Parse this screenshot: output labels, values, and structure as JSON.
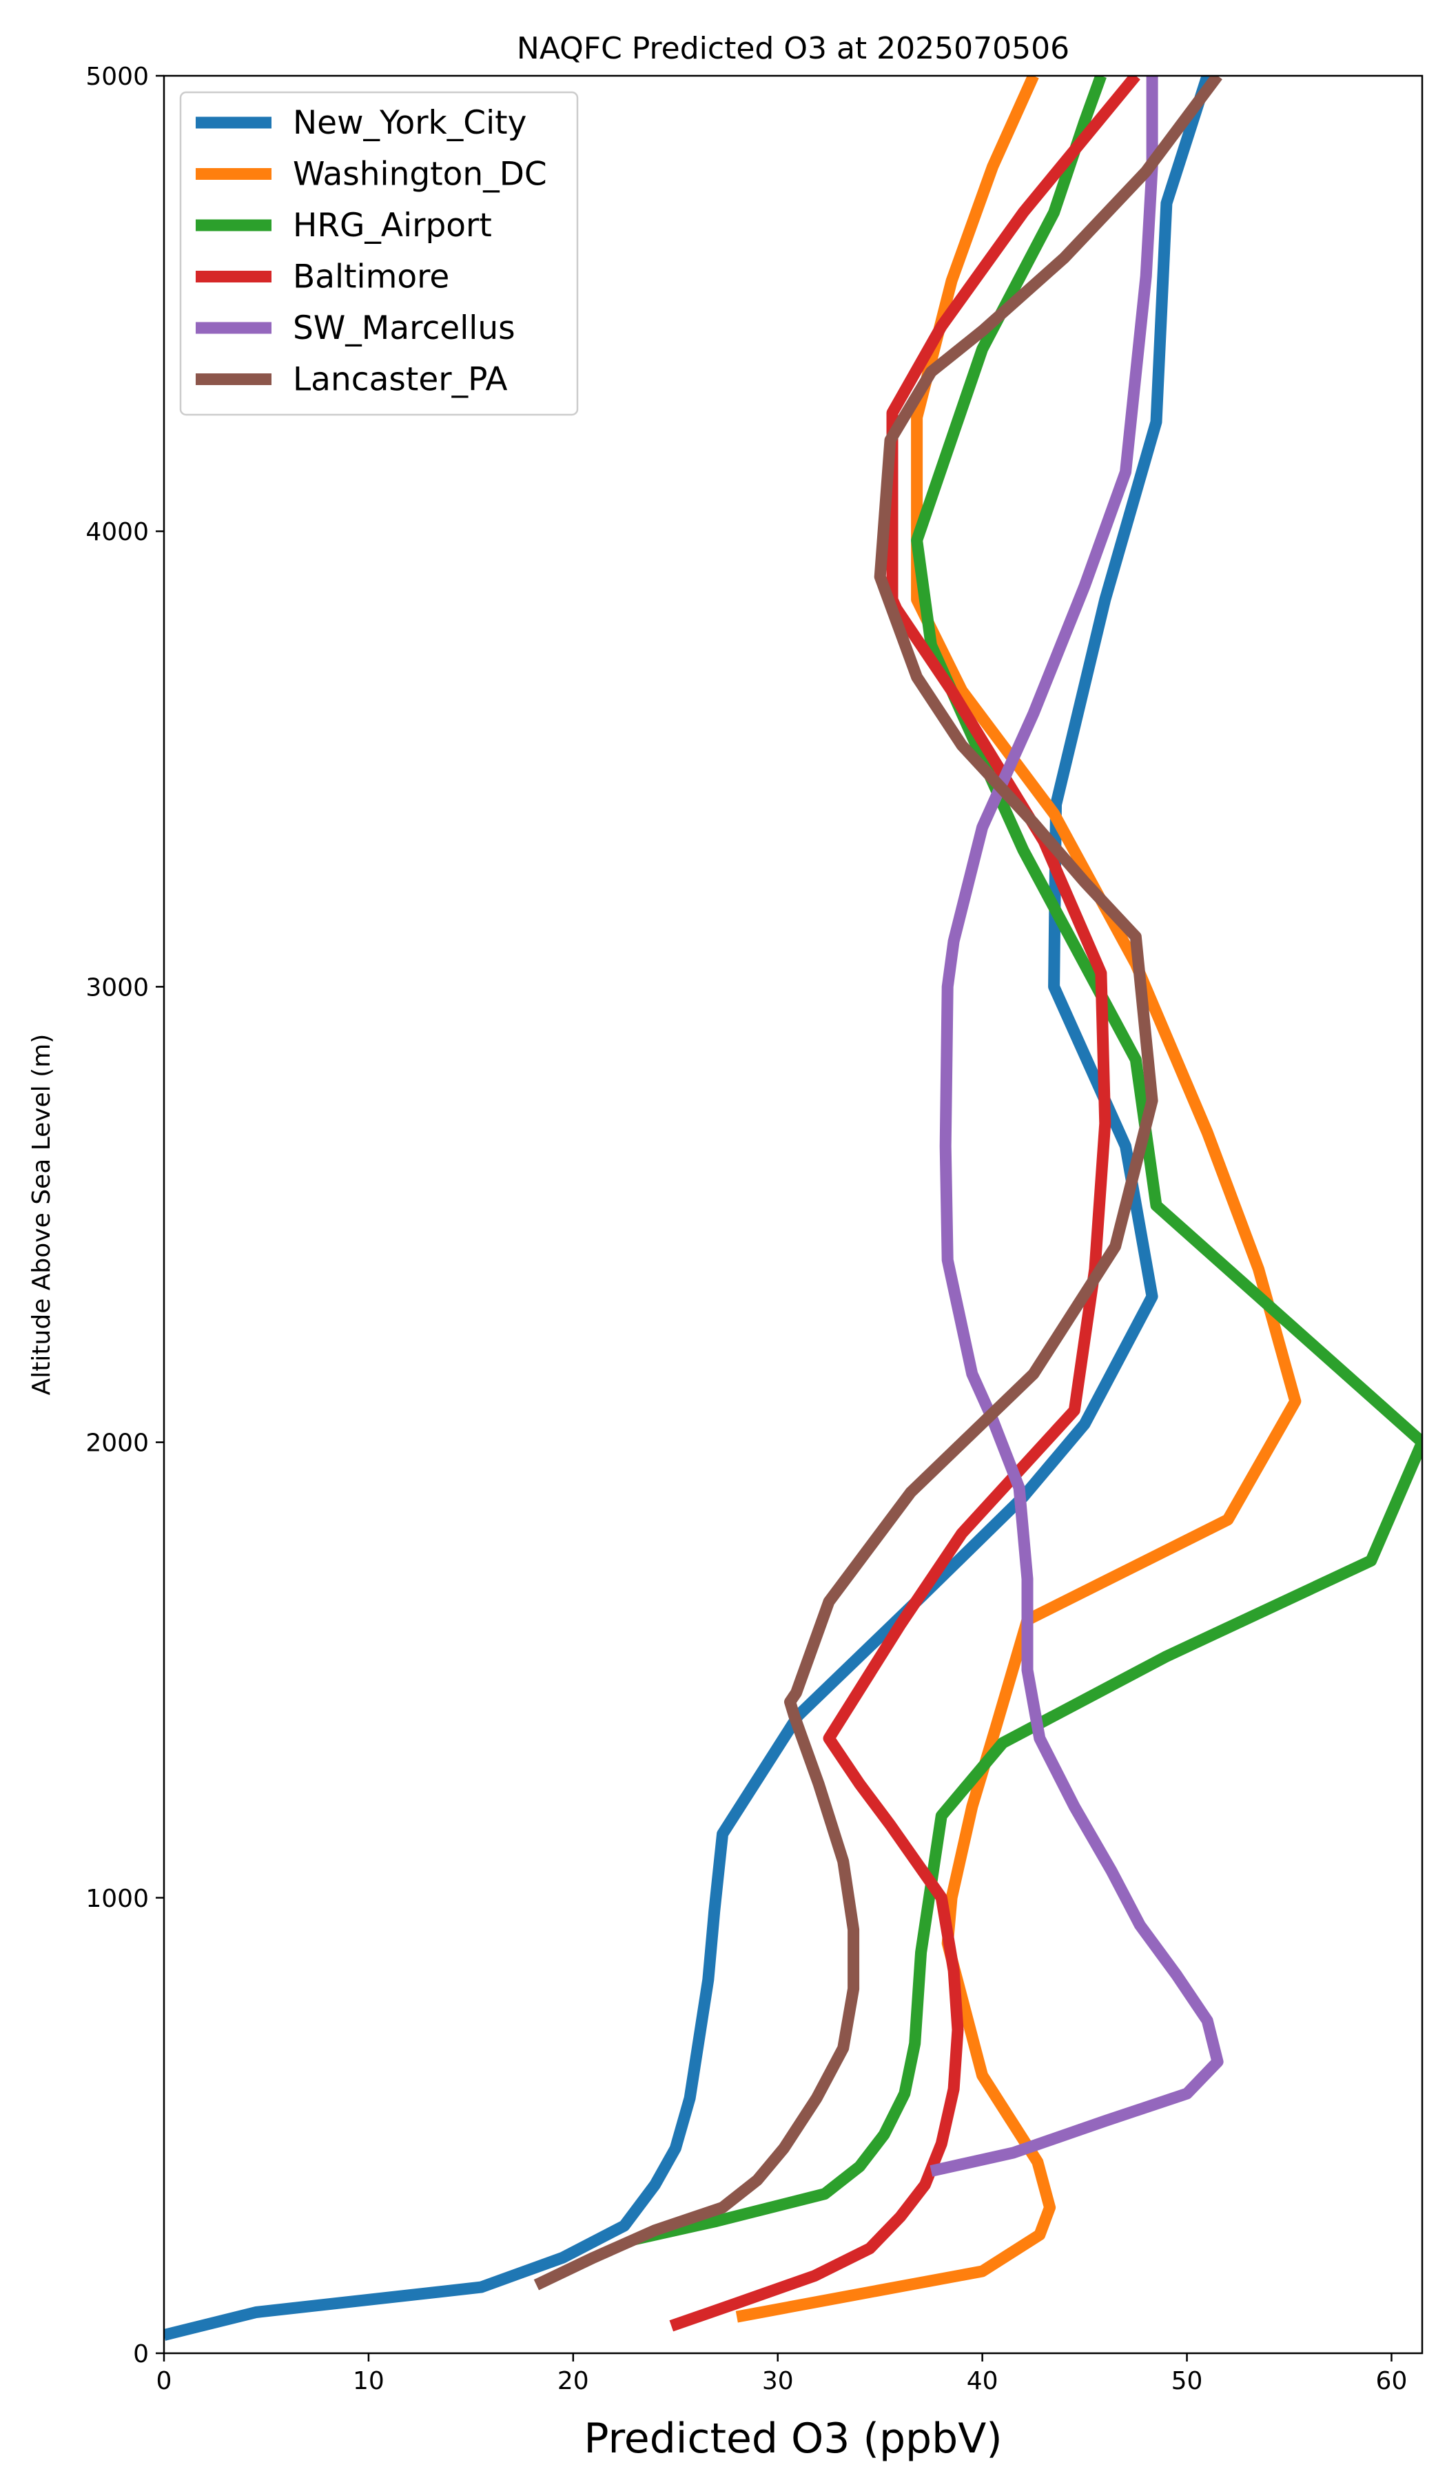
{
  "chart_data": {
    "type": "line",
    "title": "NAQFC Predicted O3 at 2025070506",
    "xlabel": "Predicted O3 (ppbV)",
    "ylabel": "Altitude Above Sea Level (m)",
    "xlim": [
      0,
      61.5
    ],
    "ylim": [
      0,
      5000
    ],
    "xticks": [
      0,
      10,
      20,
      30,
      40,
      50,
      60
    ],
    "yticks": [
      0,
      1000,
      2000,
      3000,
      4000,
      5000
    ],
    "grid": false,
    "legend_position": "upper-left",
    "series": [
      {
        "name": "New_York_City",
        "color": "#1f77b4",
        "x": [
          0,
          4.5,
          15.5,
          19.5,
          22.5,
          24.0,
          25.0,
          25.7,
          26.6,
          26.9,
          27.3,
          31.0,
          37.0,
          42.0,
          45.0,
          48.3,
          47.0,
          43.5,
          43.6,
          46.0,
          48.5,
          49.0,
          51.0
        ],
        "y": [
          40,
          90,
          145,
          210,
          280,
          370,
          450,
          560,
          820,
          970,
          1140,
          1400,
          1660,
          1880,
          2040,
          2320,
          2650,
          3000,
          3400,
          3850,
          4240,
          4720,
          5000
        ]
      },
      {
        "name": "Washington_DC",
        "color": "#ff7f0e",
        "x": [
          28.0,
          34.0,
          40.0,
          42.8,
          43.3,
          42.7,
          40.0,
          38.3,
          38.5,
          39.5,
          40.7,
          42.2,
          52.0,
          55.3,
          53.5,
          51.0,
          47.5,
          43.5,
          39.0,
          36.8,
          36.8,
          38.5,
          40.5,
          42.5
        ],
        "y": [
          80,
          130,
          180,
          260,
          320,
          420,
          610,
          900,
          1000,
          1200,
          1380,
          1610,
          1830,
          2090,
          2380,
          2680,
          3050,
          3380,
          3650,
          3850,
          4250,
          4550,
          4800,
          5000
        ]
      },
      {
        "name": "HRG_Airport",
        "color": "#2ca02c",
        "x": [
          23.0,
          27.0,
          32.3,
          34.0,
          35.2,
          36.2,
          36.7,
          37.0,
          38.0,
          41.0,
          49.0,
          59.0,
          61.5,
          48.5,
          47.5,
          42.0,
          37.5,
          36.8,
          40.0,
          43.5,
          45.0,
          45.8
        ],
        "y": [
          250,
          290,
          350,
          410,
          480,
          570,
          680,
          880,
          1180,
          1340,
          1530,
          1740,
          2000,
          2520,
          2840,
          3300,
          3750,
          3980,
          4400,
          4700,
          4900,
          5000
        ]
      },
      {
        "name": "Baltimore",
        "color": "#d62728",
        "x": [
          24.8,
          28.0,
          31.8,
          34.5,
          36.0,
          37.2,
          38.0,
          38.6,
          38.8,
          38.6,
          38.0,
          35.5,
          34.0,
          32.5,
          36.0,
          39.0,
          44.5,
          45.5,
          46.0,
          45.8,
          43.0,
          38.5,
          35.8,
          35.6,
          35.6,
          38.0,
          42.0,
          47.5
        ],
        "y": [
          60,
          110,
          170,
          230,
          300,
          370,
          460,
          580,
          710,
          840,
          1000,
          1160,
          1250,
          1350,
          1600,
          1800,
          2070,
          2380,
          2700,
          3030,
          3320,
          3650,
          3830,
          3850,
          4260,
          4450,
          4700,
          5000
        ]
      },
      {
        "name": "SW_Marcellus",
        "color": "#9467bd",
        "x": [
          37.5,
          41.5,
          46.0,
          50.0,
          51.5,
          51.0,
          49.5,
          47.7,
          46.3,
          44.5,
          42.8,
          42.2,
          42.2,
          41.8,
          40.5,
          39.5,
          38.3,
          38.2,
          38.3,
          38.6,
          40.0,
          42.5,
          45.0,
          47.0,
          48.0,
          48.3,
          48.3
        ],
        "y": [
          400,
          440,
          510,
          570,
          640,
          730,
          830,
          940,
          1060,
          1200,
          1350,
          1500,
          1700,
          1900,
          2050,
          2150,
          2400,
          2650,
          3000,
          3100,
          3350,
          3600,
          3880,
          4130,
          4560,
          4800,
          5000
        ]
      },
      {
        "name": "Lancaster_PA",
        "color": "#8c564b",
        "x": [
          18.2,
          21.0,
          24.0,
          27.3,
          29.0,
          30.3,
          31.9,
          33.2,
          33.7,
          33.7,
          33.2,
          32.0,
          30.8,
          30.6,
          30.9,
          32.5,
          36.5,
          42.5,
          46.5,
          48.3,
          47.5,
          45.0,
          42.5,
          39.0,
          36.8,
          35.0,
          35.5,
          37.5,
          40.0,
          44.0,
          48.0,
          51.5
        ],
        "y": [
          150,
          210,
          270,
          320,
          380,
          450,
          560,
          670,
          800,
          930,
          1080,
          1250,
          1400,
          1430,
          1450,
          1650,
          1890,
          2150,
          2430,
          2750,
          3110,
          3230,
          3360,
          3530,
          3680,
          3900,
          4200,
          4350,
          4440,
          4600,
          4790,
          5000
        ]
      }
    ]
  }
}
